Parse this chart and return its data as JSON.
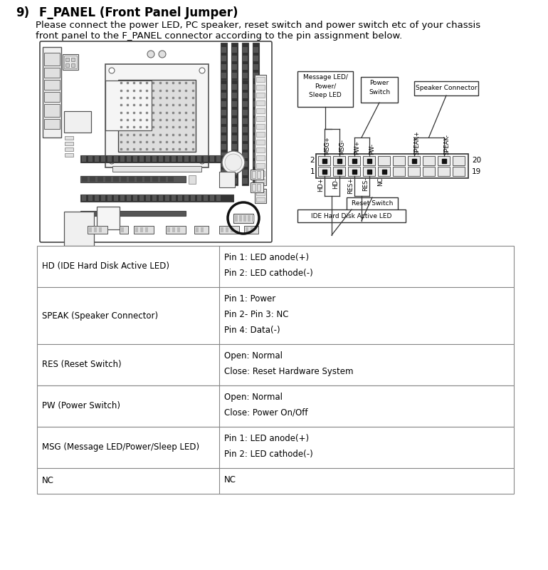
{
  "title_number": "9)",
  "title_text": "F_PANEL (Front Panel Jumper)",
  "desc1": "Please connect the power LED, PC speaker, reset switch and power switch etc of your chassis",
  "desc2": "front panel to the F_PANEL connector according to the pin assignment below.",
  "top_labels": [
    "MSG+",
    "MSG-",
    "PW+",
    "PW-",
    "",
    "",
    "SPEAK+",
    "",
    "SPEAK-",
    ""
  ],
  "bot_labels": [
    "HD+",
    "HD-",
    "RES+",
    "RES-",
    "NC",
    "",
    "",
    "",
    "",
    ""
  ],
  "top_active_cols": [
    0,
    1,
    2,
    3,
    6,
    8
  ],
  "bot_active_cols": [
    0,
    1,
    2,
    3,
    4
  ],
  "table_rows": [
    {
      "col1": "HD (IDE Hard Disk Active LED)",
      "col2": [
        "Pin 1: LED anode(+)",
        "Pin 2: LED cathode(-)"
      ]
    },
    {
      "col1": "SPEAK (Speaker Connector)",
      "col2": [
        "Pin 1: Power",
        "Pin 2- Pin 3: NC",
        "Pin 4: Data(-)"
      ]
    },
    {
      "col1": "RES (Reset Switch)",
      "col2": [
        "Open: Normal",
        "Close: Reset Hardware System"
      ]
    },
    {
      "col1": "PW (Power Switch)",
      "col2": [
        "Open: Normal",
        "Close: Power On/Off"
      ]
    },
    {
      "col1": "MSG (Message LED/Power/Sleep LED)",
      "col2": [
        "Pin 1: LED anode(+)",
        "Pin 2: LED cathode(-)"
      ]
    },
    {
      "col1": "NC",
      "col2": [
        "NC"
      ]
    }
  ],
  "bg_color": "#ffffff",
  "lc": "#333333"
}
